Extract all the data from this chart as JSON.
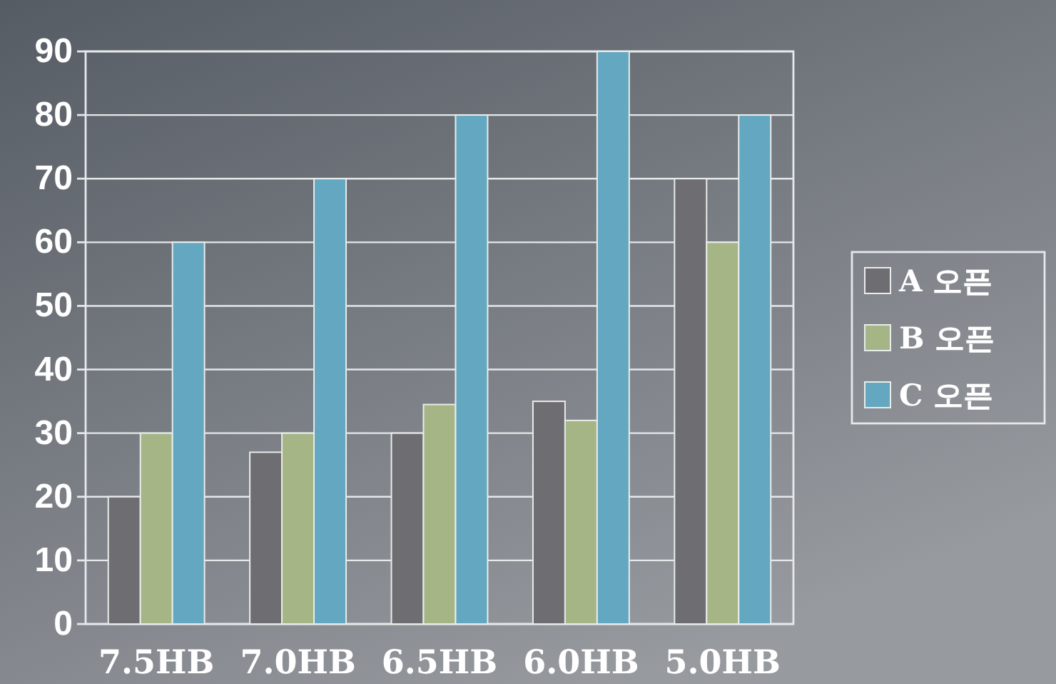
{
  "chart_data": {
    "type": "bar",
    "categories": [
      "7.5HB",
      "7.0HB",
      "6.5HB",
      "6.0HB",
      "5.0HB"
    ],
    "series": [
      {
        "name": "A 오픈",
        "color": "#6e6d72",
        "values": [
          20,
          27,
          30,
          35,
          70
        ]
      },
      {
        "name": "B 오픈",
        "color": "#a5b586",
        "values": [
          30,
          30,
          34.5,
          32,
          60
        ]
      },
      {
        "name": "C 오픈",
        "color": "#63a7c0",
        "values": [
          60,
          70,
          80,
          90,
          80
        ]
      }
    ],
    "ylim": [
      0,
      90
    ],
    "yticks": [
      0,
      10,
      20,
      30,
      40,
      50,
      60,
      70,
      80,
      90
    ],
    "grid": "y",
    "legend": "right"
  }
}
